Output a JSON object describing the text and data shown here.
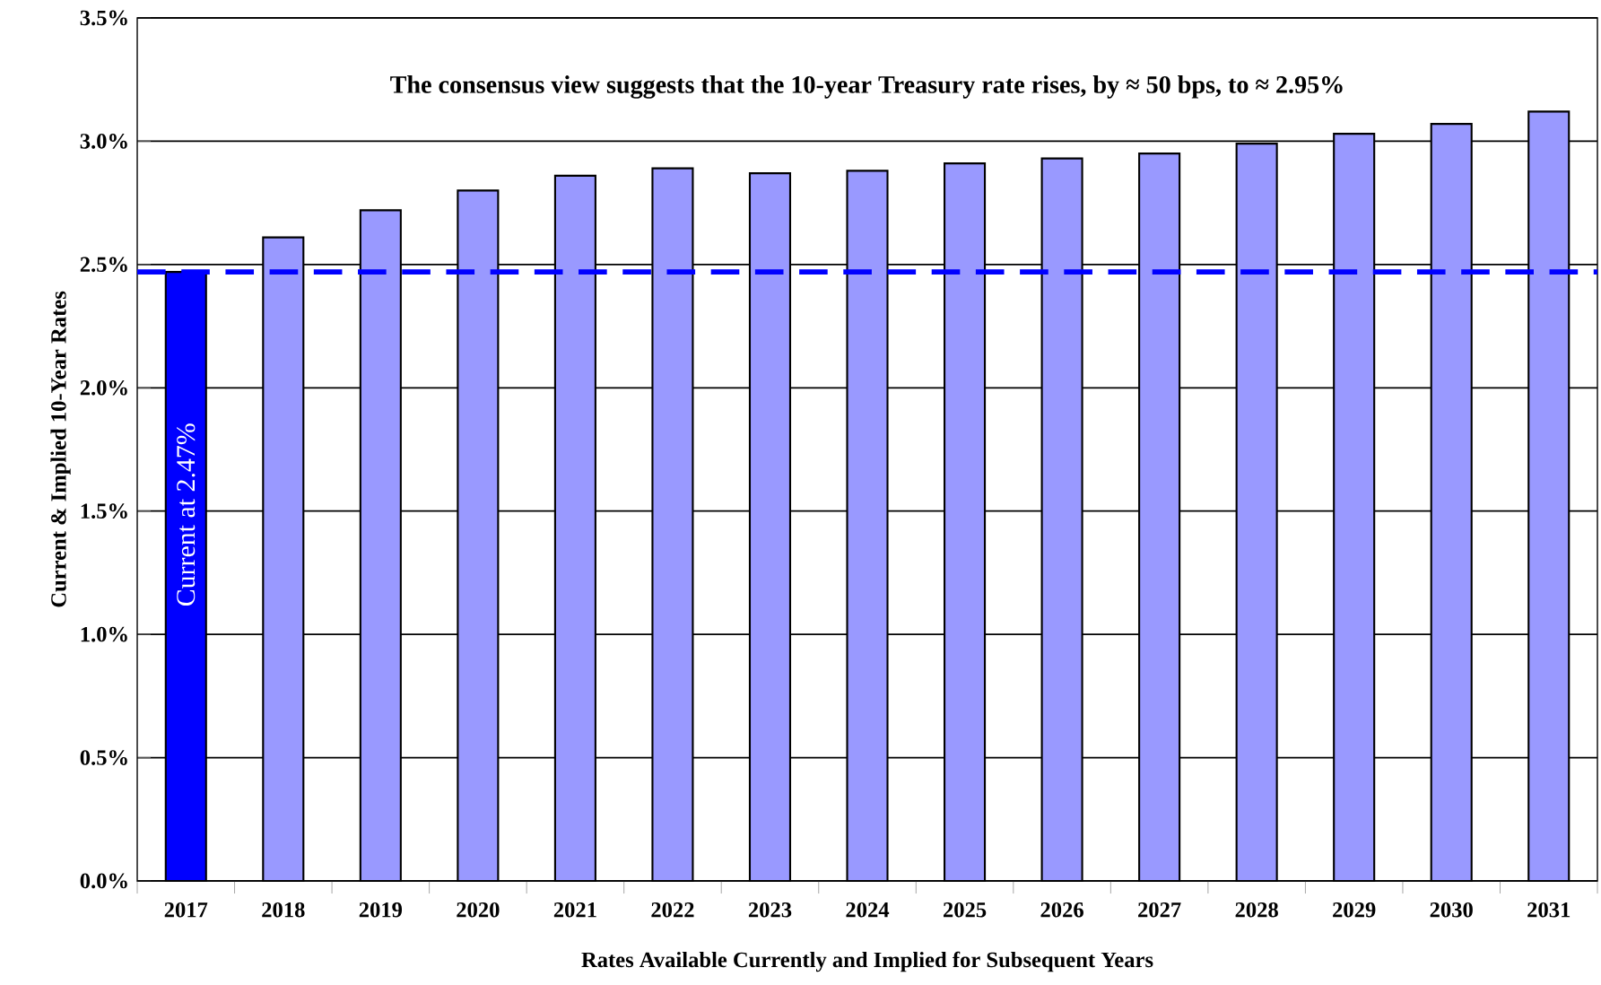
{
  "chart_data": {
    "type": "bar",
    "xlabel": "Rates Available Currently and Implied for Subsequent Years",
    "ylabel": "Current & Implied 10-Year Rates",
    "categories": [
      "2017",
      "2018",
      "2019",
      "2020",
      "2021",
      "2022",
      "2023",
      "2024",
      "2025",
      "2026",
      "2027",
      "2028",
      "2029",
      "2030",
      "2031"
    ],
    "values": [
      2.47,
      2.61,
      2.72,
      2.8,
      2.86,
      2.89,
      2.87,
      2.88,
      2.91,
      2.93,
      2.95,
      2.99,
      3.03,
      3.07,
      3.12
    ],
    "colors": [
      "#0000ff",
      "#9999ff",
      "#9999ff",
      "#9999ff",
      "#9999ff",
      "#9999ff",
      "#9999ff",
      "#9999ff",
      "#9999ff",
      "#9999ff",
      "#9999ff",
      "#9999ff",
      "#9999ff",
      "#9999ff",
      "#9999ff"
    ],
    "ylim": [
      0,
      3.5
    ],
    "yticks": [
      {
        "value": 0,
        "label": "0.0%"
      },
      {
        "value": 0.5,
        "label": "0.5%"
      },
      {
        "value": 1,
        "label": "1.0%"
      },
      {
        "value": 1.5,
        "label": "1.5%"
      },
      {
        "value": 2,
        "label": "2.0%"
      },
      {
        "value": 2.5,
        "label": "2.5%"
      },
      {
        "value": 3,
        "label": "3.0%"
      },
      {
        "value": 3.5,
        "label": "3.5%"
      }
    ],
    "grid": "y",
    "ref_lines": [
      {
        "axis": "y",
        "value": 2.47,
        "color": "#0000ff",
        "line_style": "dashed"
      }
    ],
    "annotations": [
      "The consensus view suggests that the 10-year Treasury rate rises, by ≈ 50 bps, to ≈ 2.95%",
      "Current at 2.47%"
    ]
  }
}
